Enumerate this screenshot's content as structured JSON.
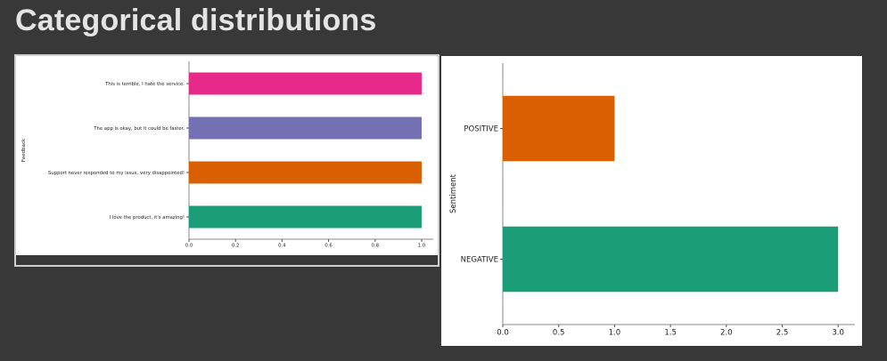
{
  "page": {
    "title": "Categorical distributions"
  },
  "chart_data": [
    {
      "type": "bar",
      "orientation": "horizontal",
      "ylabel": "Feedback",
      "categories": [
        "I love the product, it's amazing!",
        "Support never responded to my issue, very disappointed!",
        "The app is okay, but it could be faster.",
        "This is terrible, I hate the service."
      ],
      "values": [
        1,
        1,
        1,
        1
      ],
      "colors": [
        "#1b9e77",
        "#d95f02",
        "#7570b3",
        "#e7298a"
      ],
      "xlim": [
        0,
        1.05
      ],
      "xticks": [
        "0.0",
        "0.2",
        "0.4",
        "0.6",
        "0.8",
        "1.0"
      ],
      "xtick_values": [
        0,
        0.2,
        0.4,
        0.6,
        0.8,
        1.0
      ]
    },
    {
      "type": "bar",
      "orientation": "horizontal",
      "ylabel": "Sentiment",
      "categories": [
        "NEGATIVE",
        "POSITIVE"
      ],
      "values": [
        3,
        1
      ],
      "colors": [
        "#1b9e77",
        "#d95f02"
      ],
      "xlim": [
        0,
        3.15
      ],
      "xticks": [
        "0.0",
        "0.5",
        "1.0",
        "1.5",
        "2.0",
        "2.5",
        "3.0"
      ],
      "xtick_values": [
        0,
        0.5,
        1.0,
        1.5,
        2.0,
        2.5,
        3.0
      ]
    }
  ]
}
